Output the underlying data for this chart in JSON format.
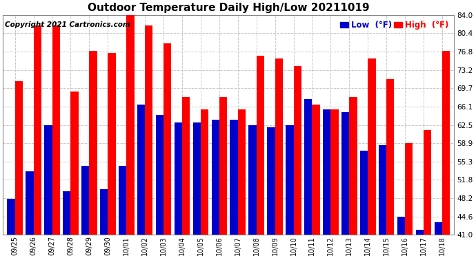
{
  "title": "Outdoor Temperature Daily High/Low 20211019",
  "copyright": "Copyright 2021 Cartronics.com",
  "labels": [
    "09/25",
    "09/26",
    "09/27",
    "09/28",
    "09/29",
    "09/30",
    "10/01",
    "10/02",
    "10/03",
    "10/04",
    "10/05",
    "10/06",
    "10/07",
    "10/08",
    "10/09",
    "10/10",
    "10/11",
    "10/12",
    "10/13",
    "10/14",
    "10/15",
    "10/16",
    "10/17",
    "10/18"
  ],
  "high": [
    71.0,
    82.0,
    82.0,
    69.0,
    77.0,
    76.5,
    84.0,
    82.0,
    78.5,
    68.0,
    65.5,
    68.0,
    65.5,
    76.0,
    75.5,
    74.0,
    66.5,
    65.5,
    68.0,
    75.5,
    71.5,
    59.0,
    61.5,
    77.0
  ],
  "low": [
    48.0,
    53.5,
    62.5,
    49.5,
    54.5,
    50.0,
    54.5,
    66.5,
    64.5,
    63.0,
    63.0,
    63.5,
    63.5,
    62.5,
    62.0,
    62.5,
    67.5,
    65.5,
    65.0,
    57.5,
    58.5,
    44.5,
    42.0,
    43.5
  ],
  "high_color": "#ff0000",
  "low_color": "#0000cc",
  "bg_color": "#ffffff",
  "grid_color": "#c8c8c8",
  "ymin": 41.0,
  "ymax": 84.0,
  "yticks": [
    41.0,
    44.6,
    48.2,
    51.8,
    55.3,
    58.9,
    62.5,
    66.1,
    69.7,
    73.2,
    76.8,
    80.4,
    84.0
  ],
  "title_fontsize": 11,
  "copyright_fontsize": 7.5,
  "legend_low_label": "Low  (°F)",
  "legend_high_label": "High  (°F)"
}
